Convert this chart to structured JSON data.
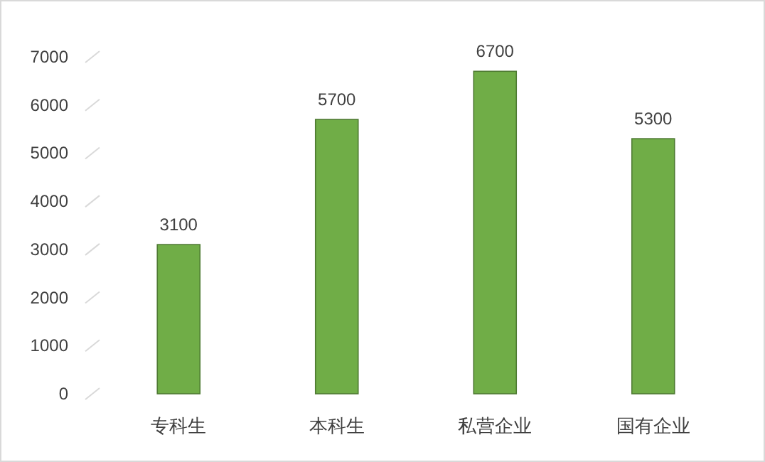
{
  "chart_data": {
    "type": "bar",
    "categories": [
      "专科生",
      "本科生",
      "私营企业",
      "国有企业"
    ],
    "values": [
      3100,
      5700,
      6700,
      5300
    ],
    "color": "#70ad47",
    "ylim": [
      0,
      7000
    ],
    "yticks": [
      0,
      1000,
      2000,
      3000,
      4000,
      5000,
      6000,
      7000
    ],
    "data_labels": true,
    "grid": false
  }
}
